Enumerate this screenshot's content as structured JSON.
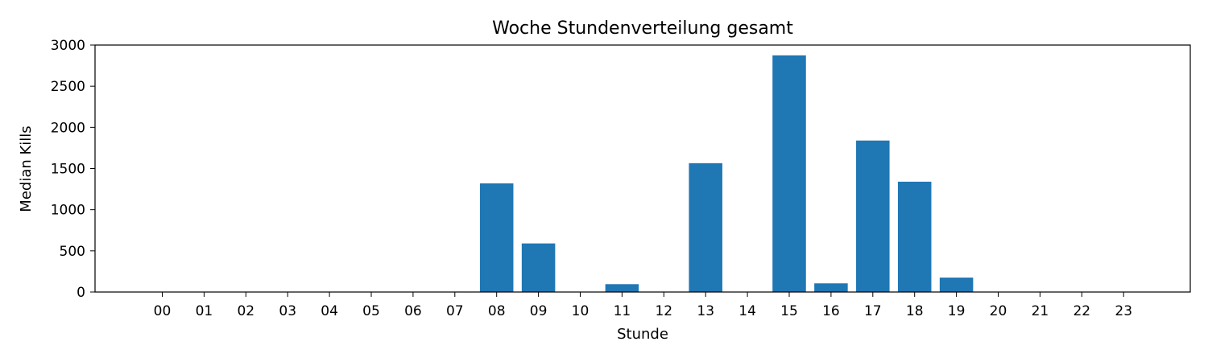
{
  "chart_data": {
    "type": "bar",
    "title": "Woche Stundenverteilung gesamt",
    "xlabel": "Stunde",
    "ylabel": "Median Kills",
    "categories": [
      "00",
      "01",
      "02",
      "03",
      "04",
      "05",
      "06",
      "07",
      "08",
      "09",
      "10",
      "11",
      "12",
      "13",
      "14",
      "15",
      "16",
      "17",
      "18",
      "19",
      "20",
      "21",
      "22",
      "23"
    ],
    "values": [
      0,
      0,
      0,
      0,
      0,
      0,
      0,
      0,
      1320,
      590,
      0,
      95,
      0,
      1565,
      0,
      2875,
      105,
      1840,
      1340,
      175,
      0,
      0,
      0,
      0
    ],
    "ylim": [
      0,
      3000
    ],
    "yticks": [
      0,
      500,
      1000,
      1500,
      2000,
      2500,
      3000
    ],
    "bar_color": "#1f77b4",
    "grid": false,
    "legend": "none"
  }
}
